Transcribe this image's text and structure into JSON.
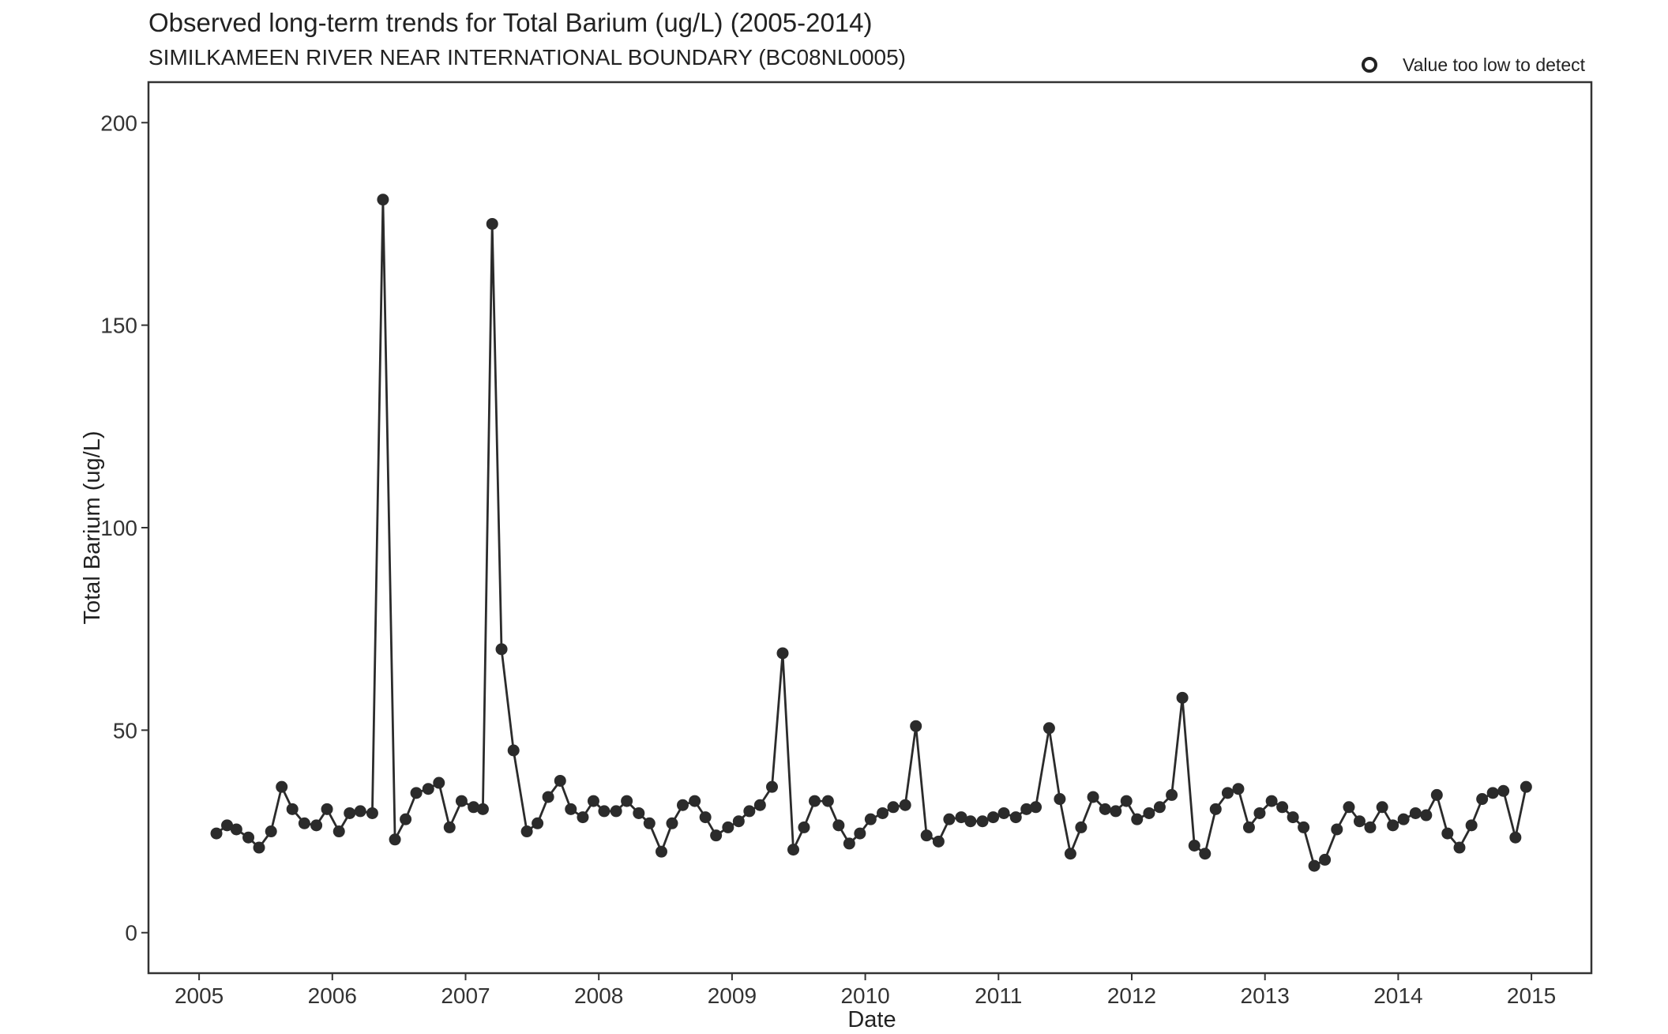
{
  "chart_data": {
    "type": "line",
    "title": "Observed long-term trends for Total Barium (ug/L) (2005-2014)",
    "subtitle": "SIMILKAMEEN RIVER NEAR INTERNATIONAL BOUNDARY (BC08NL0005)",
    "xlabel": "Date",
    "ylabel": "Total Barium (ug/L)",
    "xlim": [
      2004.62,
      2015.45
    ],
    "ylim": [
      -10,
      210
    ],
    "xticks": [
      2005,
      2006,
      2007,
      2008,
      2009,
      2010,
      2011,
      2012,
      2013,
      2014,
      2015
    ],
    "yticks": [
      0,
      50,
      100,
      150,
      200
    ],
    "grid": false,
    "legend": {
      "position": "top-right",
      "entries": [
        {
          "label": "Value too low to detect",
          "marker": "open-circle"
        }
      ]
    },
    "colors": {
      "series": "#2b2b2b",
      "frame": "#333333"
    },
    "series": [
      {
        "x": [
          2005.13,
          2005.21,
          2005.28,
          2005.37,
          2005.45,
          2005.54,
          2005.62,
          2005.7,
          2005.79,
          2005.88,
          2005.96,
          2006.05,
          2006.13,
          2006.21,
          2006.3,
          2006.38,
          2006.47,
          2006.55,
          2006.63,
          2006.72,
          2006.8,
          2006.88,
          2006.97,
          2007.06,
          2007.13,
          2007.2,
          2007.27,
          2007.36,
          2007.46,
          2007.54,
          2007.62,
          2007.71,
          2007.79,
          2007.88,
          2007.96,
          2008.04,
          2008.13,
          2008.21,
          2008.3,
          2008.38,
          2008.47,
          2008.55,
          2008.63,
          2008.72,
          2008.8,
          2008.88,
          2008.97,
          2009.05,
          2009.13,
          2009.21,
          2009.3,
          2009.38,
          2009.46,
          2009.54,
          2009.62,
          2009.72,
          2009.8,
          2009.88,
          2009.96,
          2010.04,
          2010.13,
          2010.21,
          2010.3,
          2010.38,
          2010.46,
          2010.55,
          2010.63,
          2010.72,
          2010.79,
          2010.88,
          2010.96,
          2011.04,
          2011.13,
          2011.21,
          2011.28,
          2011.38,
          2011.46,
          2011.54,
          2011.62,
          2011.71,
          2011.8,
          2011.88,
          2011.96,
          2012.04,
          2012.13,
          2012.21,
          2012.3,
          2012.38,
          2012.47,
          2012.55,
          2012.63,
          2012.72,
          2012.8,
          2012.88,
          2012.96,
          2013.05,
          2013.13,
          2013.21,
          2013.29,
          2013.37,
          2013.45,
          2013.54,
          2013.63,
          2013.71,
          2013.79,
          2013.88,
          2013.96,
          2014.04,
          2014.13,
          2014.21,
          2014.29,
          2014.37,
          2014.46,
          2014.55,
          2014.63,
          2014.71,
          2014.79,
          2014.88,
          2014.96
        ],
        "y": [
          24.5,
          26.5,
          25.5,
          23.5,
          21,
          25,
          36,
          30.5,
          27,
          26.5,
          30.5,
          25,
          29.5,
          30,
          29.5,
          181,
          23,
          28,
          34.5,
          35.5,
          37,
          26,
          32.5,
          31,
          30.5,
          175,
          70,
          45,
          25,
          27,
          33.5,
          37.5,
          30.5,
          28.5,
          32.5,
          30,
          30,
          32.5,
          29.5,
          27,
          20,
          27,
          31.5,
          32.5,
          28.5,
          24,
          26,
          27.5,
          30,
          31.5,
          36,
          69,
          20.5,
          26,
          32.5,
          32.5,
          26.5,
          22,
          24.5,
          28,
          29.5,
          31,
          31.5,
          51,
          24,
          22.5,
          28,
          28.5,
          27.5,
          27.5,
          28.5,
          29.5,
          28.5,
          30.5,
          31,
          50.5,
          33,
          19.5,
          26,
          33.5,
          30.5,
          30,
          32.5,
          28,
          29.5,
          31,
          34,
          58,
          21.5,
          19.5,
          30.5,
          34.5,
          35.5,
          26,
          29.5,
          32.5,
          31,
          28.5,
          26,
          16.5,
          18,
          25.5,
          31,
          27.5,
          26,
          31,
          26.5,
          28,
          29.5,
          29,
          34,
          24.5,
          21,
          26.5,
          33,
          34.5,
          35,
          23.5,
          36
        ]
      }
    ]
  }
}
